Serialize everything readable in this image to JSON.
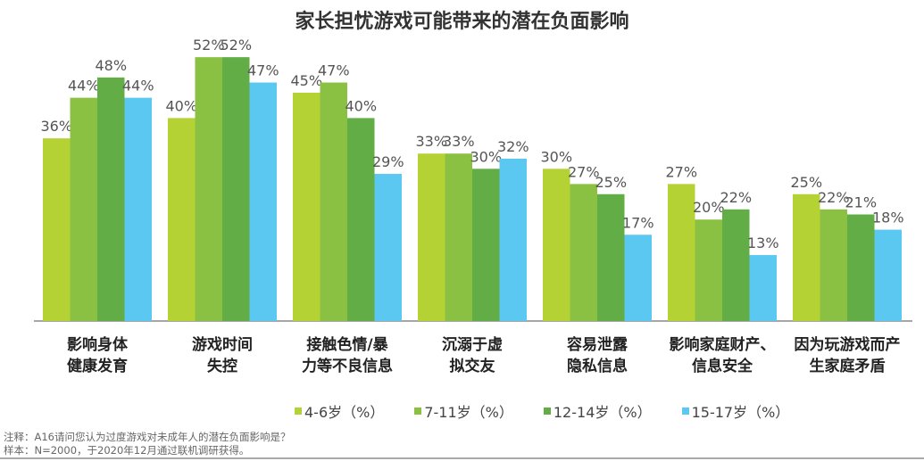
{
  "chart_data": {
    "type": "bar",
    "title": "家长担忧游戏可能带来的潜在负面影响",
    "categories": [
      [
        "影响身体",
        "健康发育"
      ],
      [
        "游戏时间",
        "失控"
      ],
      [
        "接触色情/暴",
        "力等不良信息"
      ],
      [
        "沉溺于虚",
        "拟交友"
      ],
      [
        "容易泄露",
        "隐私信息"
      ],
      [
        "影响家庭财产、",
        "信息安全"
      ],
      [
        "因为玩游戏而产",
        "生家庭矛盾"
      ]
    ],
    "series": [
      {
        "name": "4-6岁（%）",
        "color": "#b5d235",
        "values": [
          36,
          40,
          45,
          33,
          30,
          27,
          25
        ]
      },
      {
        "name": "7-11岁（%）",
        "color": "#8bc143",
        "values": [
          44,
          52,
          47,
          33,
          27,
          20,
          22
        ]
      },
      {
        "name": "12-14岁（%）",
        "color": "#62ad45",
        "values": [
          48,
          52,
          40,
          30,
          25,
          22,
          21
        ]
      },
      {
        "name": "15-17岁（%）",
        "color": "#5bc8f2",
        "values": [
          44,
          47,
          29,
          32,
          17,
          13,
          18
        ]
      }
    ],
    "value_suffix": "%",
    "ylim": [
      0,
      55
    ],
    "grid": false,
    "legend_position": "bottom"
  },
  "notes": [
    "注释：A16请问您认为过度游戏对未成年人的潜在负面影响是？",
    "样本：N=2000，于2020年12月通过联机调研获得。"
  ]
}
